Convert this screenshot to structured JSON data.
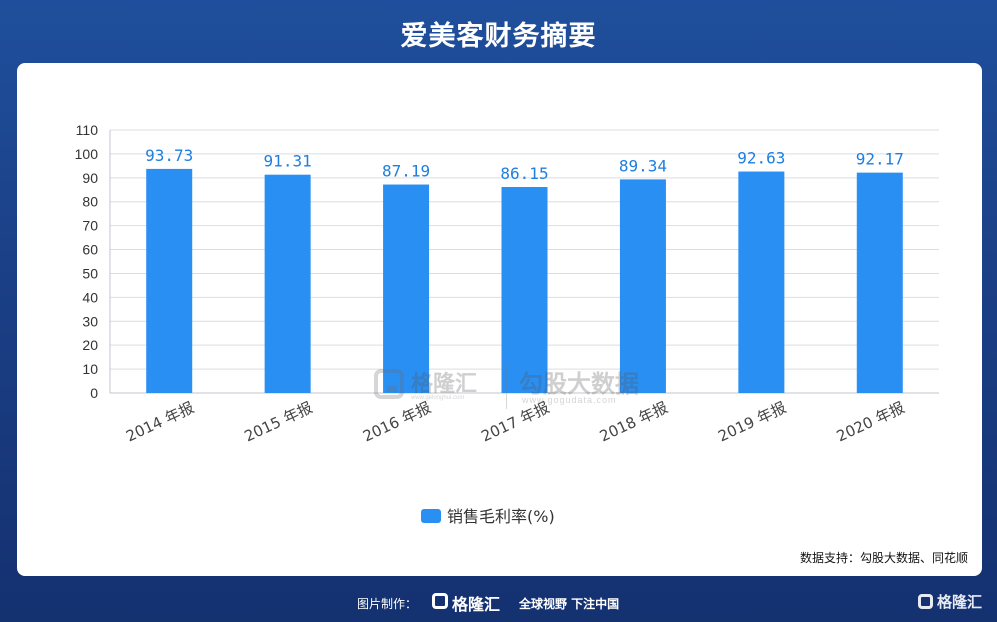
{
  "title": "爱美客财务摘要",
  "chart_data": {
    "type": "bar",
    "categories": [
      "2014 年报",
      "2015 年报",
      "2016 年报",
      "2017 年报",
      "2018 年报",
      "2019 年报",
      "2020 年报"
    ],
    "series": [
      {
        "name": "销售毛利率(%)",
        "values": [
          93.73,
          91.31,
          87.19,
          86.15,
          89.34,
          92.63,
          92.17
        ]
      }
    ],
    "data_labels": [
      "93.73",
      "91.31",
      "87.19",
      "86.15",
      "89.34",
      "92.63",
      "92.17"
    ],
    "ylim": [
      0,
      110
    ],
    "yticks": [
      0,
      10,
      20,
      30,
      40,
      50,
      60,
      70,
      80,
      90,
      100,
      110
    ],
    "xlabel": "",
    "ylabel": "",
    "grid": true,
    "legend": "bottom-center",
    "color": "#2a8ff2"
  },
  "watermark": {
    "left_cn": "格隆汇",
    "left_url": "www.gelonghui.com",
    "right_cn": "勾股大数据",
    "right_url": "www.gogudata.com"
  },
  "source_note": "数据支持：勾股大数据、同花顺",
  "footer": {
    "label": "图片制作：",
    "logo_text": "格隆汇",
    "slogan": "全球视野 下注中国"
  },
  "corner_logo": "格隆汇"
}
